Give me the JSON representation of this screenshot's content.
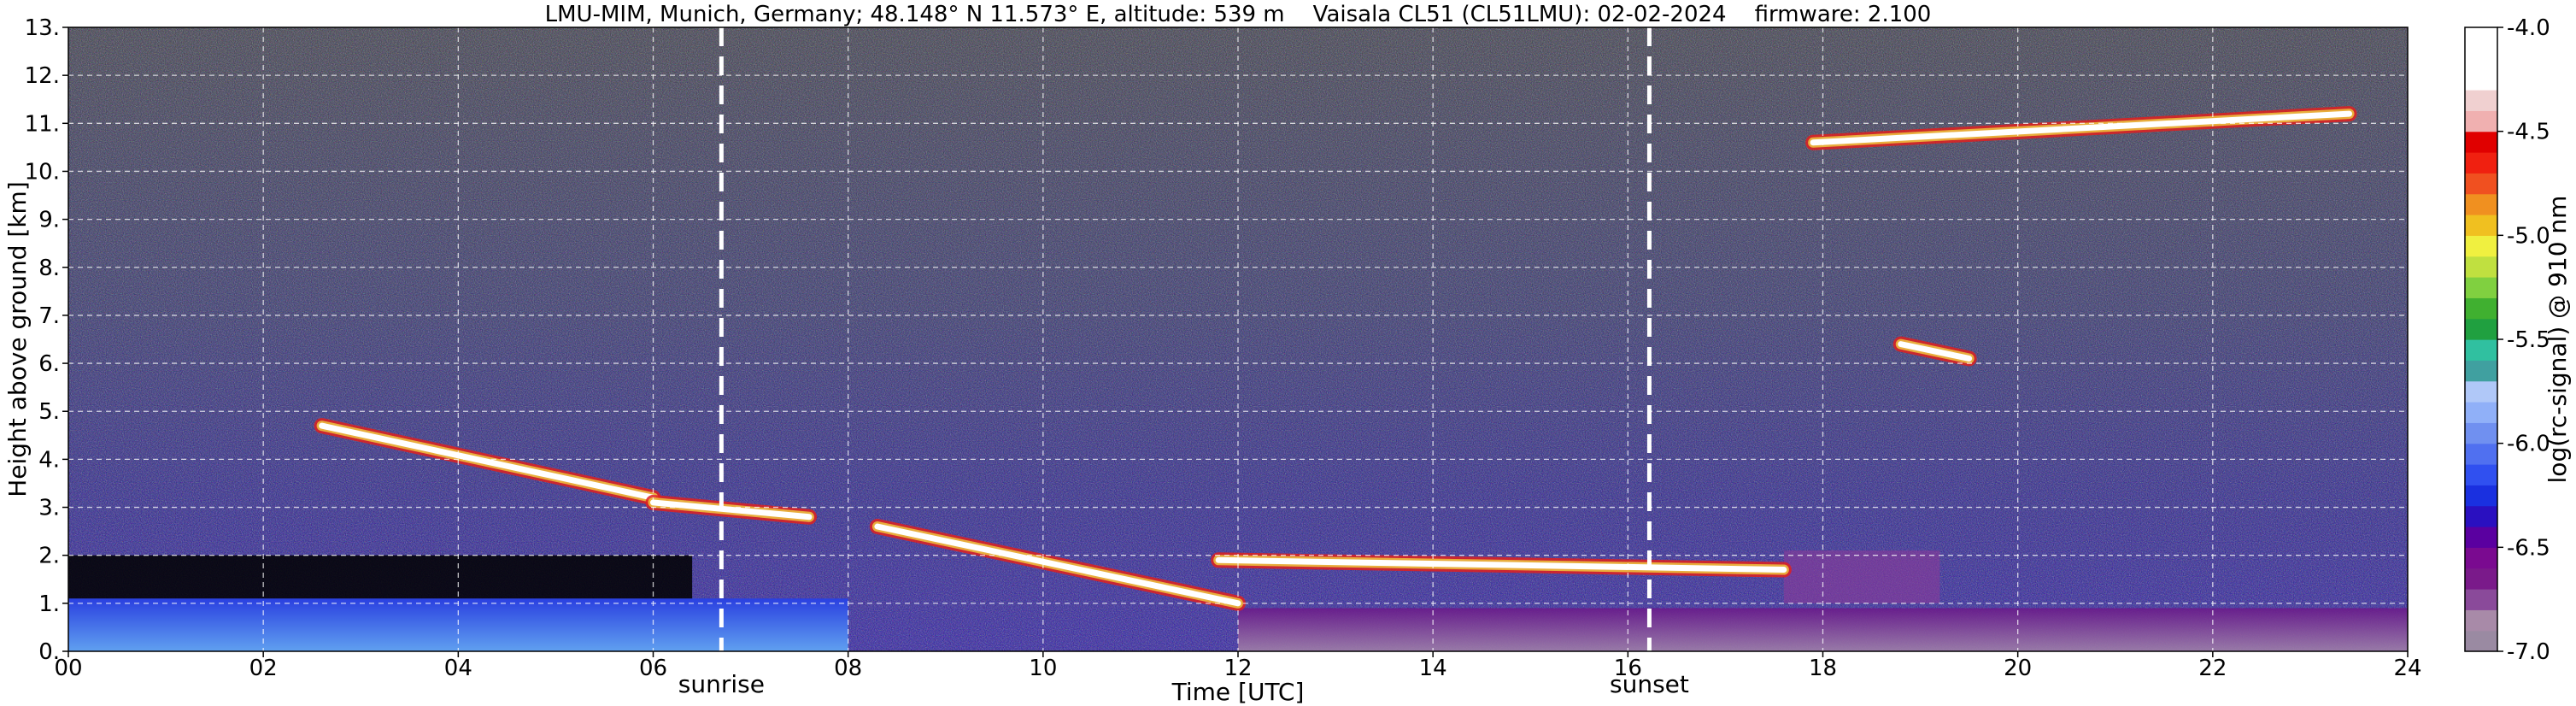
{
  "chart_data": {
    "type": "heatmap",
    "title": "LMU-MIM, Munich, Germany; 48.148° N 11.573° E, altitude: 539 m    Vaisala CL51 (CL51LMU): 02-02-2024    firmware: 2.100",
    "xlabel": "Time [UTC]",
    "ylabel": "Height above ground [km]",
    "xlim": [
      0,
      24
    ],
    "ylim": [
      0,
      13
    ],
    "x_ticks": [
      0,
      2,
      4,
      6,
      8,
      10,
      12,
      14,
      16,
      18,
      20,
      22,
      24
    ],
    "x_tick_labels": [
      "00",
      "02",
      "04",
      "06",
      "08",
      "10",
      "12",
      "14",
      "16",
      "18",
      "20",
      "22",
      "24"
    ],
    "y_ticks": [
      0,
      1,
      2,
      3,
      4,
      5,
      6,
      7,
      8,
      9,
      10,
      11,
      12,
      13
    ],
    "y_tick_labels": [
      "0.",
      "1.",
      "2.",
      "3.",
      "4.",
      "5.",
      "6.",
      "7.",
      "8.",
      "9.",
      "10.",
      "11.",
      "12.",
      "13."
    ],
    "grid": true,
    "markers": [
      {
        "label": "sunrise",
        "x": 6.7
      },
      {
        "label": "sunset",
        "x": 16.22
      }
    ],
    "colorbar": {
      "label": "log(rc-signal) @ 910 nm",
      "range": [
        -7.0,
        -4.0
      ],
      "ticks": [
        -4.0,
        -4.5,
        -5.0,
        -5.5,
        -6.0,
        -6.5,
        -7.0
      ],
      "tick_labels": [
        "-4.0",
        "-4.5",
        "-5.0",
        "-5.5",
        "-6.0",
        "-6.5",
        "-7.0"
      ],
      "colors": [
        "#9a8aa2",
        "#a88aa8",
        "#8a4a9a",
        "#7a1a8a",
        "#7a0a90",
        "#5a00a0",
        "#2a10c0",
        "#1a30e0",
        "#3050f0",
        "#5070f0",
        "#7090f0",
        "#90b0f8",
        "#b0c8f8",
        "#40a0a0",
        "#30c0a0",
        "#20a040",
        "#40b030",
        "#80d040",
        "#c0e040",
        "#f0f040",
        "#f0c020",
        "#f09020",
        "#f05020",
        "#f02010",
        "#e00000",
        "#f0b0b0",
        "#f0d0d0",
        "#ffffff",
        "#ffffff",
        "#ffffff"
      ]
    },
    "features": [
      {
        "name": "cloud layer",
        "start_x": 2.6,
        "end_x": 6.0,
        "y_start": 4.7,
        "y_end": 3.2
      },
      {
        "name": "cloud layer",
        "start_x": 6.0,
        "end_x": 7.6,
        "y_start": 3.1,
        "y_end": 2.8
      },
      {
        "name": "cloud layer",
        "start_x": 8.3,
        "end_x": 12.0,
        "y_start": 2.6,
        "y_end": 1.0
      },
      {
        "name": "cloud layer",
        "start_x": 11.8,
        "end_x": 17.6,
        "y_start": 1.9,
        "y_end": 1.7
      },
      {
        "name": "cirrus",
        "start_x": 17.9,
        "end_x": 23.4,
        "y_start": 10.6,
        "y_end": 11.2
      },
      {
        "name": "cloud patch",
        "start_x": 18.8,
        "end_x": 19.5,
        "y_start": 6.4,
        "y_end": 6.1
      }
    ]
  }
}
